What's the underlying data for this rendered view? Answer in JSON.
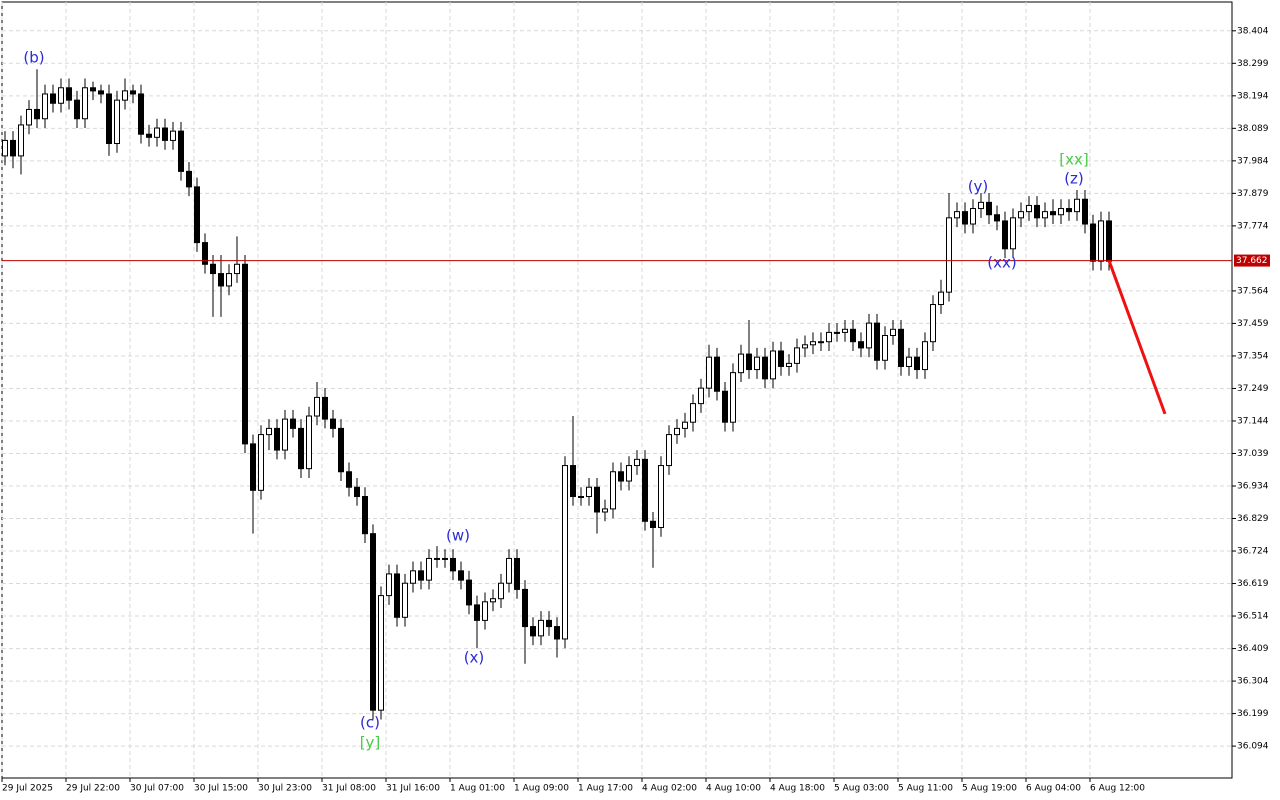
{
  "chart_data": {
    "type": "candlestick",
    "ylim": [
      35.991,
      38.497
    ],
    "yticks": [
      38.404,
      38.299,
      38.194,
      38.089,
      37.984,
      37.879,
      37.774,
      37.564,
      37.459,
      37.354,
      37.249,
      37.144,
      37.039,
      36.934,
      36.829,
      36.724,
      36.619,
      36.514,
      36.409,
      36.304,
      36.199,
      36.094
    ],
    "grid": true,
    "up_color": "#ffffff",
    "down_color": "#000000",
    "categories": [
      "29 Jul 2025",
      null,
      null,
      null,
      null,
      null,
      null,
      null,
      "29 Jul 22:00",
      null,
      null,
      null,
      null,
      null,
      null,
      null,
      "30 Jul 07:00",
      null,
      null,
      null,
      null,
      null,
      null,
      null,
      "30 Jul 15:00",
      null,
      null,
      null,
      null,
      null,
      null,
      null,
      "30 Jul 23:00",
      null,
      null,
      null,
      null,
      null,
      null,
      null,
      "31 Jul 08:00",
      null,
      null,
      null,
      null,
      null,
      null,
      null,
      "31 Jul 16:00",
      null,
      null,
      null,
      null,
      null,
      null,
      null,
      "1 Aug 01:00",
      null,
      null,
      null,
      null,
      null,
      null,
      null,
      "1 Aug 09:00",
      null,
      null,
      null,
      null,
      null,
      null,
      null,
      "1 Aug 17:00",
      null,
      null,
      null,
      null,
      null,
      null,
      null,
      "4 Aug 02:00",
      null,
      null,
      null,
      null,
      null,
      null,
      null,
      "4 Aug 10:00",
      null,
      null,
      null,
      null,
      null,
      null,
      null,
      "4 Aug 18:00",
      null,
      null,
      null,
      null,
      null,
      null,
      null,
      "5 Aug 03:00",
      null,
      null,
      null,
      null,
      null,
      null,
      null,
      "5 Aug 11:00",
      null,
      null,
      null,
      null,
      null,
      null,
      null,
      "5 Aug 19:00",
      null,
      null,
      null,
      null,
      null,
      null,
      null,
      "6 Aug 04:00",
      null,
      null,
      null,
      null,
      null,
      null,
      null,
      "6 Aug 12:00",
      null,
      null
    ],
    "ohlc": [
      [
        38.0,
        38.08,
        37.97,
        38.05
      ],
      [
        38.05,
        38.08,
        37.96,
        38.0
      ],
      [
        38.0,
        38.13,
        37.94,
        38.1
      ],
      [
        38.1,
        38.18,
        38.07,
        38.15
      ],
      [
        38.15,
        38.28,
        38.09,
        38.12
      ],
      [
        38.12,
        38.23,
        38.09,
        38.2
      ],
      [
        38.2,
        38.23,
        38.14,
        38.17
      ],
      [
        38.17,
        38.25,
        38.14,
        38.22
      ],
      [
        38.22,
        38.25,
        38.15,
        38.18
      ],
      [
        38.18,
        38.21,
        38.09,
        38.12
      ],
      [
        38.12,
        38.25,
        38.09,
        38.22
      ],
      [
        38.22,
        38.24,
        38.18,
        38.21
      ],
      [
        38.21,
        38.23,
        38.17,
        38.2
      ],
      [
        38.2,
        38.23,
        38.0,
        38.04
      ],
      [
        38.04,
        38.21,
        38.01,
        38.18
      ],
      [
        38.18,
        38.25,
        38.15,
        38.21
      ],
      [
        38.21,
        38.23,
        38.17,
        38.2
      ],
      [
        38.2,
        38.23,
        38.04,
        38.07
      ],
      [
        38.07,
        38.1,
        38.03,
        38.06
      ],
      [
        38.06,
        38.12,
        38.03,
        38.09
      ],
      [
        38.09,
        38.12,
        38.02,
        38.05
      ],
      [
        38.05,
        38.11,
        38.02,
        38.08
      ],
      [
        38.08,
        38.11,
        37.92,
        37.95
      ],
      [
        37.95,
        37.98,
        37.87,
        37.9
      ],
      [
        37.9,
        37.93,
        37.69,
        37.72
      ],
      [
        37.72,
        37.75,
        37.62,
        37.65
      ],
      [
        37.65,
        37.68,
        37.48,
        37.62
      ],
      [
        37.62,
        37.68,
        37.48,
        37.58
      ],
      [
        37.58,
        37.65,
        37.55,
        37.62
      ],
      [
        37.62,
        37.74,
        37.59,
        37.65
      ],
      [
        37.65,
        37.68,
        37.04,
        37.07
      ],
      [
        37.07,
        37.1,
        36.78,
        36.92
      ],
      [
        36.92,
        37.13,
        36.89,
        37.1
      ],
      [
        37.1,
        37.15,
        37.05,
        37.12
      ],
      [
        37.12,
        37.15,
        37.02,
        37.05
      ],
      [
        37.05,
        37.18,
        37.02,
        37.15
      ],
      [
        37.15,
        37.18,
        37.09,
        37.12
      ],
      [
        37.12,
        37.15,
        36.96,
        36.99
      ],
      [
        36.99,
        37.19,
        36.96,
        37.16
      ],
      [
        37.16,
        37.27,
        37.13,
        37.22
      ],
      [
        37.22,
        37.25,
        37.12,
        37.15
      ],
      [
        37.15,
        37.18,
        37.09,
        37.12
      ],
      [
        37.12,
        37.15,
        36.95,
        36.98
      ],
      [
        36.98,
        37.01,
        36.9,
        36.93
      ],
      [
        36.93,
        36.96,
        36.87,
        36.9
      ],
      [
        36.9,
        36.93,
        36.75,
        36.78
      ],
      [
        36.78,
        36.81,
        36.18,
        36.21
      ],
      [
        36.21,
        36.61,
        36.18,
        36.58
      ],
      [
        36.58,
        36.68,
        36.55,
        36.65
      ],
      [
        36.65,
        36.68,
        36.48,
        36.51
      ],
      [
        36.51,
        36.65,
        36.48,
        36.62
      ],
      [
        36.62,
        36.69,
        36.59,
        36.66
      ],
      [
        36.66,
        36.69,
        36.6,
        36.63
      ],
      [
        36.63,
        36.73,
        36.6,
        36.7
      ],
      [
        36.7,
        36.74,
        36.67,
        36.7
      ],
      [
        36.7,
        36.73,
        36.67,
        36.7
      ],
      [
        36.7,
        36.73,
        36.63,
        36.66
      ],
      [
        36.66,
        36.69,
        36.6,
        36.63
      ],
      [
        36.63,
        36.66,
        36.52,
        36.55
      ],
      [
        36.55,
        36.58,
        36.41,
        36.5
      ],
      [
        36.5,
        36.59,
        36.47,
        36.56
      ],
      [
        36.56,
        36.6,
        36.53,
        36.57
      ],
      [
        36.57,
        36.65,
        36.54,
        36.62
      ],
      [
        36.62,
        36.73,
        36.59,
        36.7
      ],
      [
        36.7,
        36.73,
        36.57,
        36.6
      ],
      [
        36.6,
        36.63,
        36.36,
        36.48
      ],
      [
        36.48,
        36.51,
        36.42,
        36.45
      ],
      [
        36.45,
        36.53,
        36.42,
        36.5
      ],
      [
        36.5,
        36.53,
        36.45,
        36.48
      ],
      [
        36.48,
        36.51,
        36.38,
        36.44
      ],
      [
        36.44,
        37.03,
        36.41,
        37.0
      ],
      [
        37.0,
        37.16,
        36.87,
        36.9
      ],
      [
        36.9,
        36.93,
        36.87,
        36.9
      ],
      [
        36.9,
        36.96,
        36.87,
        36.93
      ],
      [
        36.93,
        36.96,
        36.78,
        36.85
      ],
      [
        36.85,
        36.89,
        36.82,
        36.86
      ],
      [
        36.86,
        37.01,
        36.83,
        36.98
      ],
      [
        36.98,
        37.01,
        36.92,
        36.95
      ],
      [
        36.95,
        37.03,
        36.92,
        37.0
      ],
      [
        37.0,
        37.05,
        36.97,
        37.02
      ],
      [
        37.02,
        37.05,
        36.79,
        36.82
      ],
      [
        36.82,
        36.85,
        36.67,
        36.8
      ],
      [
        36.8,
        37.03,
        36.77,
        37.0
      ],
      [
        37.0,
        37.13,
        36.97,
        37.1
      ],
      [
        37.1,
        37.15,
        37.07,
        37.12
      ],
      [
        37.12,
        37.17,
        37.09,
        37.14
      ],
      [
        37.14,
        37.23,
        37.11,
        37.2
      ],
      [
        37.2,
        37.28,
        37.17,
        37.25
      ],
      [
        37.25,
        37.39,
        37.22,
        37.35
      ],
      [
        37.35,
        37.38,
        37.21,
        37.24
      ],
      [
        37.24,
        37.27,
        37.11,
        37.14
      ],
      [
        37.14,
        37.33,
        37.11,
        37.3
      ],
      [
        37.3,
        37.39,
        37.27,
        37.36
      ],
      [
        37.36,
        37.47,
        37.28,
        37.31
      ],
      [
        37.31,
        37.38,
        37.28,
        37.35
      ],
      [
        37.35,
        37.38,
        37.25,
        37.28
      ],
      [
        37.28,
        37.4,
        37.25,
        37.37
      ],
      [
        37.37,
        37.4,
        37.29,
        37.32
      ],
      [
        37.32,
        37.36,
        37.29,
        37.33
      ],
      [
        37.33,
        37.41,
        37.3,
        37.38
      ],
      [
        37.38,
        37.42,
        37.35,
        37.39
      ],
      [
        37.39,
        37.43,
        37.36,
        37.4
      ],
      [
        37.4,
        37.43,
        37.37,
        37.4
      ],
      [
        37.4,
        37.46,
        37.37,
        37.43
      ],
      [
        37.43,
        37.46,
        37.4,
        37.43
      ],
      [
        37.43,
        37.47,
        37.4,
        37.44
      ],
      [
        37.44,
        37.47,
        37.37,
        37.4
      ],
      [
        37.4,
        37.43,
        37.35,
        37.38
      ],
      [
        37.38,
        37.49,
        37.35,
        37.46
      ],
      [
        37.46,
        37.49,
        37.31,
        37.34
      ],
      [
        37.34,
        37.45,
        37.31,
        37.42
      ],
      [
        37.42,
        37.47,
        37.39,
        37.44
      ],
      [
        37.44,
        37.47,
        37.29,
        37.32
      ],
      [
        37.32,
        37.38,
        37.29,
        37.35
      ],
      [
        37.35,
        37.38,
        37.28,
        37.31
      ],
      [
        37.31,
        37.43,
        37.28,
        37.4
      ],
      [
        37.4,
        37.55,
        37.37,
        37.52
      ],
      [
        37.52,
        37.6,
        37.49,
        37.56
      ],
      [
        37.56,
        37.88,
        37.53,
        37.8
      ],
      [
        37.8,
        37.85,
        37.77,
        37.82
      ],
      [
        37.82,
        37.85,
        37.75,
        37.78
      ],
      [
        37.78,
        37.86,
        37.75,
        37.83
      ],
      [
        37.83,
        37.88,
        37.8,
        37.85
      ],
      [
        37.85,
        37.88,
        37.78,
        37.81
      ],
      [
        37.81,
        37.84,
        37.76,
        37.79
      ],
      [
        37.79,
        37.82,
        37.67,
        37.7
      ],
      [
        37.7,
        37.83,
        37.67,
        37.8
      ],
      [
        37.8,
        37.85,
        37.77,
        37.82
      ],
      [
        37.82,
        37.87,
        37.79,
        37.84
      ],
      [
        37.84,
        37.87,
        37.77,
        37.8
      ],
      [
        37.8,
        37.85,
        37.77,
        37.82
      ],
      [
        37.82,
        37.86,
        37.78,
        37.81
      ],
      [
        37.81,
        37.86,
        37.78,
        37.83
      ],
      [
        37.83,
        37.86,
        37.79,
        37.82
      ],
      [
        37.82,
        37.89,
        37.79,
        37.86
      ],
      [
        37.86,
        37.89,
        37.75,
        37.78
      ],
      [
        37.78,
        37.81,
        37.63,
        37.66
      ],
      [
        37.66,
        37.82,
        37.63,
        37.79
      ],
      [
        37.79,
        37.82,
        37.63,
        37.66
      ]
    ],
    "price": 37.662,
    "price_color": "#c00000",
    "forecast": [
      37.662,
      37.167
    ],
    "forecast_color": "#ee1111",
    "annotations": [
      {
        "text": "(b)",
        "color": "#2a2ad8"
      },
      {
        "text": "(c)",
        "color": "#2a2ad8"
      },
      {
        "text": "[y]",
        "color": "#44cc44"
      },
      {
        "text": "(w)",
        "color": "#2a2ad8"
      },
      {
        "text": "(x)",
        "color": "#2a2ad8"
      },
      {
        "text": "(y)",
        "color": "#2a2ad8"
      },
      {
        "text": "(xx)",
        "color": "#2a2ad8"
      },
      {
        "text": "[xx]",
        "color": "#44cc44"
      },
      {
        "text": "(z)",
        "color": "#2a2ad8"
      }
    ]
  }
}
